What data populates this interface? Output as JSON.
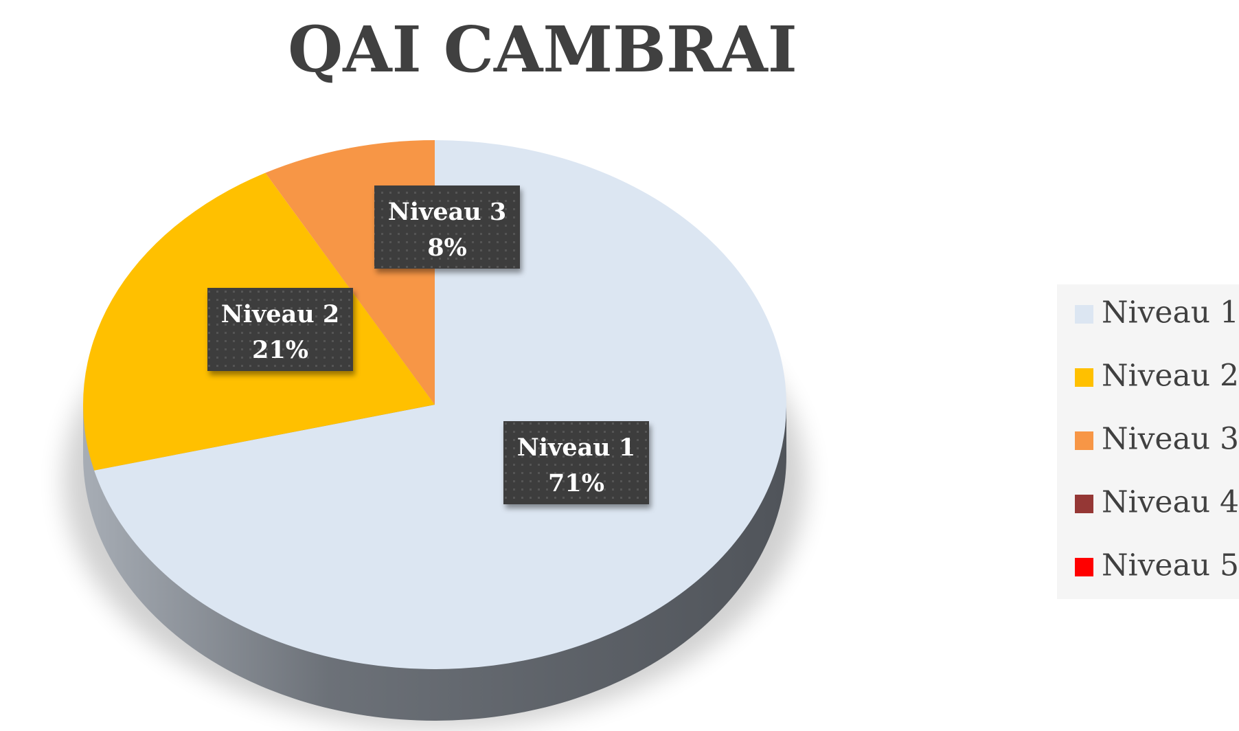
{
  "chart_data": {
    "type": "pie",
    "title": "QAI  CAMBRAI",
    "categories": [
      "Niveau 1",
      "Niveau 2",
      "Niveau 3",
      "Niveau 4",
      "Niveau 5"
    ],
    "values": [
      71,
      21,
      8,
      0,
      0
    ],
    "value_labels": [
      "71%",
      "21%",
      "8%",
      null,
      null
    ],
    "colors": [
      "#dce6f2",
      "#ffc000",
      "#f79646",
      "#953735",
      "#ff0000"
    ],
    "legend": "right"
  }
}
